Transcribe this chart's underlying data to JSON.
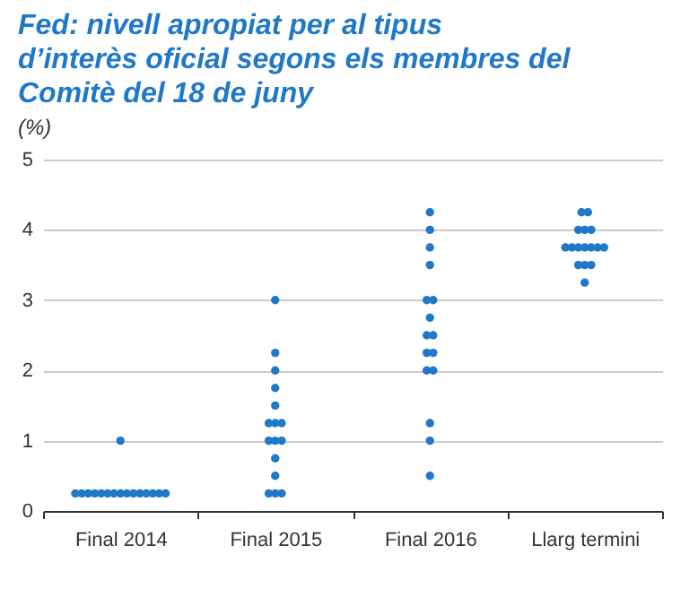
{
  "chart_data": {
    "type": "scatter",
    "title": "Fed: nivell apropiat per al tipus d’interès oficial segons els membres del Comitè del 18 de juny",
    "ylabel": "(%)",
    "categories": [
      "Final 2014",
      "Final 2015",
      "Final 2016",
      "Llarg termini"
    ],
    "series": [
      {
        "color": "#1f78c8",
        "x": [
          "Final 2014",
          "Final 2014",
          "Final 2014",
          "Final 2014",
          "Final 2014",
          "Final 2014",
          "Final 2014",
          "Final 2014",
          "Final 2014",
          "Final 2014",
          "Final 2014",
          "Final 2014",
          "Final 2014",
          "Final 2014",
          "Final 2014",
          "Final 2014",
          "Final 2015",
          "Final 2015",
          "Final 2015",
          "Final 2015",
          "Final 2015",
          "Final 2015",
          "Final 2015",
          "Final 2015",
          "Final 2015",
          "Final 2015",
          "Final 2015",
          "Final 2015",
          "Final 2015",
          "Final 2015",
          "Final 2015",
          "Final 2015",
          "Final 2016",
          "Final 2016",
          "Final 2016",
          "Final 2016",
          "Final 2016",
          "Final 2016",
          "Final 2016",
          "Final 2016",
          "Final 2016",
          "Final 2016",
          "Final 2016",
          "Final 2016",
          "Final 2016",
          "Final 2016",
          "Final 2016",
          "Final 2016",
          "Llarg termini",
          "Llarg termini",
          "Llarg termini",
          "Llarg termini",
          "Llarg termini",
          "Llarg termini",
          "Llarg termini",
          "Llarg termini",
          "Llarg termini",
          "Llarg termini",
          "Llarg termini",
          "Llarg termini",
          "Llarg termini",
          "Llarg termini",
          "Llarg termini",
          "Llarg termini"
        ],
        "values": [
          0.25,
          0.25,
          0.25,
          0.25,
          0.25,
          0.25,
          0.25,
          0.25,
          0.25,
          0.25,
          0.25,
          0.25,
          0.25,
          0.25,
          0.25,
          1.0,
          3.0,
          2.25,
          2.0,
          1.75,
          1.5,
          1.25,
          1.25,
          1.25,
          1.0,
          1.0,
          1.0,
          0.75,
          0.5,
          0.25,
          0.25,
          0.25,
          4.25,
          4.0,
          3.75,
          3.5,
          3.0,
          3.0,
          2.75,
          2.5,
          2.5,
          2.25,
          2.25,
          2.0,
          2.0,
          1.25,
          1.0,
          0.5,
          4.25,
          4.25,
          4.0,
          4.0,
          4.0,
          3.75,
          3.75,
          3.75,
          3.75,
          3.75,
          3.75,
          3.75,
          3.5,
          3.5,
          3.5,
          3.25
        ]
      }
    ],
    "ylim": [
      0,
      5
    ],
    "yticks": [
      0,
      1,
      2,
      3,
      4,
      5
    ],
    "grid": "y",
    "marker": "circle",
    "legend": false
  }
}
